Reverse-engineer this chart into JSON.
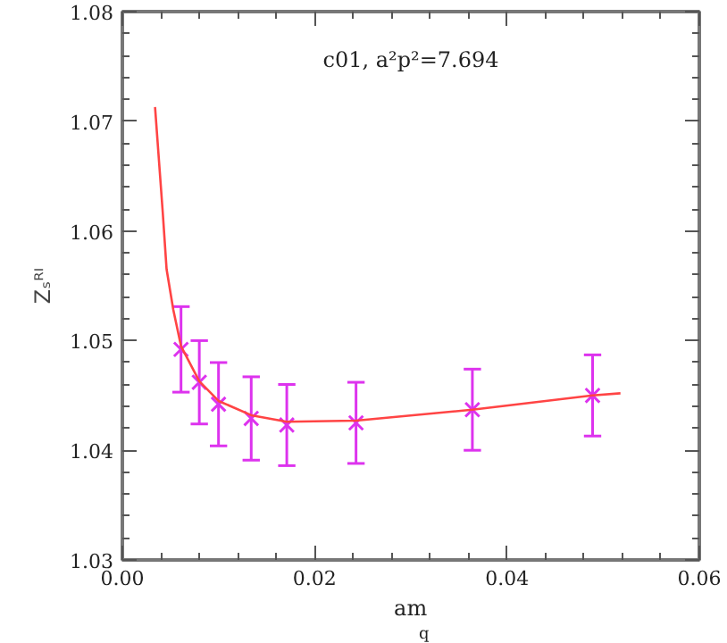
{
  "chart_data": {
    "type": "scatter",
    "title": "c01, a²p²=7.694",
    "xlabel": "am$_{q}$",
    "ylabel": "Zₛᴿᴵ",
    "xlim": [
      0,
      0.06
    ],
    "ylim": [
      1.03,
      1.08
    ],
    "xticks": [
      {
        "value": 0,
        "label": "0.00"
      },
      {
        "value": 0.02,
        "label": "0.02"
      },
      {
        "value": 0.04,
        "label": "0.04"
      },
      {
        "value": 0.06,
        "label": "0.06"
      }
    ],
    "yticks": [
      {
        "value": 1.03,
        "label": "1.03"
      },
      {
        "value": 1.04,
        "label": "1.04"
      },
      {
        "value": 1.05,
        "label": "1.05"
      },
      {
        "value": 1.06,
        "label": "1.06"
      },
      {
        "value": 1.07,
        "label": "1.07"
      },
      {
        "value": 1.08,
        "label": "1.08"
      }
    ],
    "grid": false,
    "series": [
      {
        "color": "#dd33ee",
        "marker": "cross",
        "x": [
          0.0061,
          0.008,
          0.01,
          0.0134,
          0.0171,
          0.0243,
          0.0364,
          0.0489
        ],
        "values": [
          1.0492,
          1.0462,
          1.0442,
          1.0429,
          1.0423,
          1.0425,
          1.0437,
          1.045
        ],
        "errors": [
          0.0039,
          0.0038,
          0.0038,
          0.0038,
          0.0037,
          0.0037,
          0.0037,
          0.0037
        ]
      },
      {
        "type": "line",
        "color": "#ff4444",
        "line_style": "solid",
        "x": [
          0.0034,
          0.0042,
          0.0046,
          0.0053,
          0.0061,
          0.008,
          0.01,
          0.0134,
          0.0171,
          0.0243,
          0.0364,
          0.0489,
          0.0518
        ],
        "values": [
          1.0713,
          1.0617,
          1.0565,
          1.0528,
          1.0495,
          1.0463,
          1.0445,
          1.0432,
          1.0426,
          1.0427,
          1.0437,
          1.045,
          1.0452
        ]
      }
    ]
  }
}
